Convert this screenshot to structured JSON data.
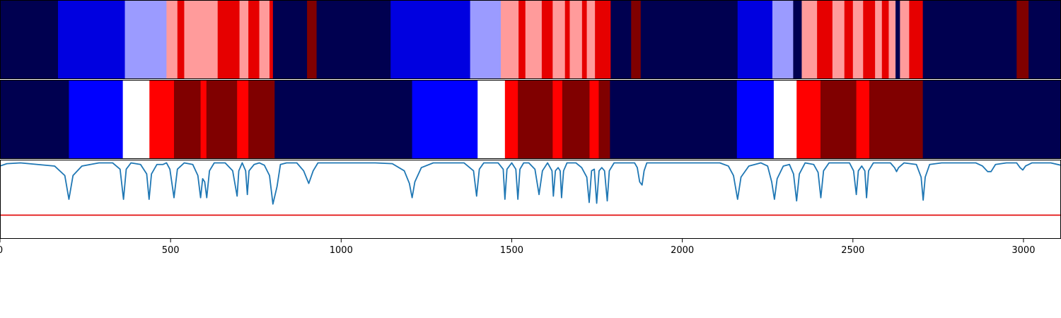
{
  "chart_data": {
    "type": "heatmap",
    "title": "",
    "xlabel": "",
    "ylabel": "",
    "xlim": [
      0,
      3110
    ],
    "x_ticks": [
      0,
      500,
      1000,
      1500,
      2000,
      2500,
      3000
    ],
    "colors": {
      "dark_navy": "#000050",
      "blue": "#0000e0",
      "bright_blue": "#0000ff",
      "light_blue": "#9b9bff",
      "white": "#ffffff",
      "pink": "#ff9b9b",
      "red": "#e60000",
      "bright_red": "#ff0000",
      "dark_red": "#800000",
      "line": "#1f77b4",
      "threshold": "#e00000"
    },
    "panels": [
      {
        "kind": "segments",
        "segments": [
          {
            "start": 0,
            "end": 170,
            "color": "dark_navy"
          },
          {
            "start": 170,
            "end": 366,
            "color": "blue"
          },
          {
            "start": 366,
            "end": 488,
            "color": "light_blue"
          },
          {
            "start": 488,
            "end": 520,
            "color": "pink"
          },
          {
            "start": 520,
            "end": 540,
            "color": "red"
          },
          {
            "start": 540,
            "end": 638,
            "color": "pink"
          },
          {
            "start": 638,
            "end": 702,
            "color": "red"
          },
          {
            "start": 702,
            "end": 728,
            "color": "pink"
          },
          {
            "start": 728,
            "end": 760,
            "color": "red"
          },
          {
            "start": 760,
            "end": 790,
            "color": "pink"
          },
          {
            "start": 790,
            "end": 800,
            "color": "red"
          },
          {
            "start": 800,
            "end": 900,
            "color": "dark_navy"
          },
          {
            "start": 900,
            "end": 928,
            "color": "dark_red"
          },
          {
            "start": 928,
            "end": 1145,
            "color": "dark_navy"
          },
          {
            "start": 1145,
            "end": 1378,
            "color": "blue"
          },
          {
            "start": 1378,
            "end": 1468,
            "color": "light_blue"
          },
          {
            "start": 1468,
            "end": 1520,
            "color": "pink"
          },
          {
            "start": 1520,
            "end": 1540,
            "color": "red"
          },
          {
            "start": 1540,
            "end": 1588,
            "color": "pink"
          },
          {
            "start": 1588,
            "end": 1620,
            "color": "red"
          },
          {
            "start": 1620,
            "end": 1656,
            "color": "pink"
          },
          {
            "start": 1656,
            "end": 1670,
            "color": "red"
          },
          {
            "start": 1670,
            "end": 1706,
            "color": "pink"
          },
          {
            "start": 1706,
            "end": 1720,
            "color": "red"
          },
          {
            "start": 1720,
            "end": 1744,
            "color": "pink"
          },
          {
            "start": 1744,
            "end": 1790,
            "color": "red"
          },
          {
            "start": 1790,
            "end": 1850,
            "color": "dark_navy"
          },
          {
            "start": 1850,
            "end": 1878,
            "color": "dark_red"
          },
          {
            "start": 1878,
            "end": 2162,
            "color": "dark_navy"
          },
          {
            "start": 2162,
            "end": 2264,
            "color": "blue"
          },
          {
            "start": 2264,
            "end": 2325,
            "color": "light_blue"
          },
          {
            "start": 2325,
            "end": 2350,
            "color": "dark_navy"
          },
          {
            "start": 2350,
            "end": 2395,
            "color": "pink"
          },
          {
            "start": 2395,
            "end": 2440,
            "color": "red"
          },
          {
            "start": 2440,
            "end": 2475,
            "color": "pink"
          },
          {
            "start": 2475,
            "end": 2500,
            "color": "red"
          },
          {
            "start": 2500,
            "end": 2530,
            "color": "pink"
          },
          {
            "start": 2530,
            "end": 2565,
            "color": "red"
          },
          {
            "start": 2565,
            "end": 2585,
            "color": "pink"
          },
          {
            "start": 2585,
            "end": 2605,
            "color": "red"
          },
          {
            "start": 2605,
            "end": 2625,
            "color": "pink"
          },
          {
            "start": 2625,
            "end": 2638,
            "color": "dark_navy"
          },
          {
            "start": 2638,
            "end": 2665,
            "color": "pink"
          },
          {
            "start": 2665,
            "end": 2705,
            "color": "red"
          },
          {
            "start": 2705,
            "end": 2980,
            "color": "dark_navy"
          },
          {
            "start": 2980,
            "end": 3015,
            "color": "dark_red"
          },
          {
            "start": 3015,
            "end": 3110,
            "color": "dark_navy"
          }
        ]
      },
      {
        "kind": "segments",
        "segments": [
          {
            "start": 0,
            "end": 202,
            "color": "dark_navy"
          },
          {
            "start": 202,
            "end": 360,
            "color": "bright_blue"
          },
          {
            "start": 360,
            "end": 438,
            "color": "white"
          },
          {
            "start": 438,
            "end": 510,
            "color": "bright_red"
          },
          {
            "start": 510,
            "end": 588,
            "color": "dark_red"
          },
          {
            "start": 588,
            "end": 605,
            "color": "bright_red"
          },
          {
            "start": 605,
            "end": 695,
            "color": "dark_red"
          },
          {
            "start": 695,
            "end": 728,
            "color": "bright_red"
          },
          {
            "start": 728,
            "end": 805,
            "color": "dark_red"
          },
          {
            "start": 805,
            "end": 1208,
            "color": "dark_navy"
          },
          {
            "start": 1208,
            "end": 1400,
            "color": "bright_blue"
          },
          {
            "start": 1400,
            "end": 1480,
            "color": "white"
          },
          {
            "start": 1480,
            "end": 1518,
            "color": "bright_red"
          },
          {
            "start": 1518,
            "end": 1620,
            "color": "dark_red"
          },
          {
            "start": 1620,
            "end": 1648,
            "color": "bright_red"
          },
          {
            "start": 1648,
            "end": 1728,
            "color": "dark_red"
          },
          {
            "start": 1728,
            "end": 1755,
            "color": "bright_red"
          },
          {
            "start": 1755,
            "end": 1788,
            "color": "dark_red"
          },
          {
            "start": 1788,
            "end": 2160,
            "color": "dark_navy"
          },
          {
            "start": 2160,
            "end": 2268,
            "color": "bright_blue"
          },
          {
            "start": 2268,
            "end": 2335,
            "color": "white"
          },
          {
            "start": 2335,
            "end": 2405,
            "color": "bright_red"
          },
          {
            "start": 2405,
            "end": 2510,
            "color": "dark_red"
          },
          {
            "start": 2510,
            "end": 2548,
            "color": "bright_red"
          },
          {
            "start": 2548,
            "end": 2705,
            "color": "dark_red"
          },
          {
            "start": 2705,
            "end": 3110,
            "color": "dark_navy"
          }
        ]
      },
      {
        "kind": "line",
        "ylim": [
          0,
          1
        ],
        "threshold": 0.3,
        "baseline": 0.96,
        "line_points": [
          [
            0,
            0.92
          ],
          [
            20,
            0.95
          ],
          [
            60,
            0.96
          ],
          [
            160,
            0.92
          ],
          [
            190,
            0.8
          ],
          [
            202,
            0.5
          ],
          [
            214,
            0.8
          ],
          [
            240,
            0.92
          ],
          [
            290,
            0.96
          ],
          [
            330,
            0.96
          ],
          [
            352,
            0.88
          ],
          [
            362,
            0.5
          ],
          [
            370,
            0.88
          ],
          [
            384,
            0.96
          ],
          [
            412,
            0.94
          ],
          [
            430,
            0.82
          ],
          [
            437,
            0.5
          ],
          [
            444,
            0.82
          ],
          [
            460,
            0.94
          ],
          [
            478,
            0.94
          ],
          [
            488,
            0.96
          ],
          [
            498,
            0.88
          ],
          [
            510,
            0.52
          ],
          [
            520,
            0.88
          ],
          [
            540,
            0.96
          ],
          [
            565,
            0.94
          ],
          [
            580,
            0.8
          ],
          [
            588,
            0.52
          ],
          [
            594,
            0.76
          ],
          [
            600,
            0.72
          ],
          [
            606,
            0.52
          ],
          [
            614,
            0.86
          ],
          [
            628,
            0.96
          ],
          [
            660,
            0.96
          ],
          [
            682,
            0.86
          ],
          [
            695,
            0.54
          ],
          [
            700,
            0.86
          ],
          [
            710,
            0.96
          ],
          [
            720,
            0.86
          ],
          [
            725,
            0.56
          ],
          [
            730,
            0.86
          ],
          [
            745,
            0.94
          ],
          [
            760,
            0.96
          ],
          [
            775,
            0.93
          ],
          [
            790,
            0.8
          ],
          [
            800,
            0.44
          ],
          [
            812,
            0.66
          ],
          [
            822,
            0.94
          ],
          [
            840,
            0.96
          ],
          [
            870,
            0.96
          ],
          [
            890,
            0.86
          ],
          [
            905,
            0.7
          ],
          [
            918,
            0.86
          ],
          [
            932,
            0.96
          ],
          [
            1000,
            0.96
          ],
          [
            1100,
            0.96
          ],
          [
            1150,
            0.95
          ],
          [
            1185,
            0.86
          ],
          [
            1200,
            0.7
          ],
          [
            1208,
            0.52
          ],
          [
            1216,
            0.72
          ],
          [
            1235,
            0.9
          ],
          [
            1270,
            0.96
          ],
          [
            1360,
            0.96
          ],
          [
            1388,
            0.86
          ],
          [
            1397,
            0.54
          ],
          [
            1405,
            0.88
          ],
          [
            1418,
            0.96
          ],
          [
            1460,
            0.96
          ],
          [
            1475,
            0.88
          ],
          [
            1480,
            0.5
          ],
          [
            1486,
            0.88
          ],
          [
            1500,
            0.96
          ],
          [
            1512,
            0.88
          ],
          [
            1518,
            0.5
          ],
          [
            1524,
            0.88
          ],
          [
            1535,
            0.96
          ],
          [
            1550,
            0.96
          ],
          [
            1568,
            0.88
          ],
          [
            1580,
            0.56
          ],
          [
            1590,
            0.86
          ],
          [
            1605,
            0.96
          ],
          [
            1618,
            0.86
          ],
          [
            1622,
            0.54
          ],
          [
            1628,
            0.86
          ],
          [
            1636,
            0.9
          ],
          [
            1642,
            0.86
          ],
          [
            1646,
            0.52
          ],
          [
            1652,
            0.86
          ],
          [
            1662,
            0.96
          ],
          [
            1688,
            0.96
          ],
          [
            1705,
            0.9
          ],
          [
            1720,
            0.78
          ],
          [
            1727,
            0.46
          ],
          [
            1734,
            0.86
          ],
          [
            1742,
            0.88
          ],
          [
            1749,
            0.45
          ],
          [
            1756,
            0.86
          ],
          [
            1764,
            0.9
          ],
          [
            1772,
            0.86
          ],
          [
            1780,
            0.48
          ],
          [
            1786,
            0.86
          ],
          [
            1800,
            0.96
          ],
          [
            1860,
            0.96
          ],
          [
            1868,
            0.9
          ],
          [
            1875,
            0.72
          ],
          [
            1882,
            0.68
          ],
          [
            1888,
            0.86
          ],
          [
            1896,
            0.96
          ],
          [
            2000,
            0.96
          ],
          [
            2110,
            0.96
          ],
          [
            2135,
            0.92
          ],
          [
            2150,
            0.8
          ],
          [
            2162,
            0.5
          ],
          [
            2172,
            0.78
          ],
          [
            2195,
            0.92
          ],
          [
            2230,
            0.96
          ],
          [
            2250,
            0.92
          ],
          [
            2262,
            0.72
          ],
          [
            2270,
            0.5
          ],
          [
            2278,
            0.76
          ],
          [
            2296,
            0.92
          ],
          [
            2314,
            0.94
          ],
          [
            2326,
            0.82
          ],
          [
            2335,
            0.48
          ],
          [
            2343,
            0.82
          ],
          [
            2360,
            0.96
          ],
          [
            2385,
            0.94
          ],
          [
            2398,
            0.84
          ],
          [
            2406,
            0.52
          ],
          [
            2414,
            0.86
          ],
          [
            2430,
            0.96
          ],
          [
            2490,
            0.96
          ],
          [
            2502,
            0.86
          ],
          [
            2510,
            0.56
          ],
          [
            2516,
            0.86
          ],
          [
            2526,
            0.92
          ],
          [
            2535,
            0.86
          ],
          [
            2540,
            0.52
          ],
          [
            2546,
            0.86
          ],
          [
            2560,
            0.96
          ],
          [
            2610,
            0.96
          ],
          [
            2622,
            0.9
          ],
          [
            2628,
            0.85
          ],
          [
            2634,
            0.9
          ],
          [
            2650,
            0.96
          ],
          [
            2686,
            0.94
          ],
          [
            2700,
            0.78
          ],
          [
            2706,
            0.49
          ],
          [
            2712,
            0.78
          ],
          [
            2725,
            0.94
          ],
          [
            2760,
            0.96
          ],
          [
            2860,
            0.96
          ],
          [
            2880,
            0.92
          ],
          [
            2895,
            0.85
          ],
          [
            2905,
            0.85
          ],
          [
            2918,
            0.94
          ],
          [
            2950,
            0.96
          ],
          [
            2980,
            0.96
          ],
          [
            2990,
            0.9
          ],
          [
            2998,
            0.87
          ],
          [
            3006,
            0.92
          ],
          [
            3025,
            0.96
          ],
          [
            3080,
            0.96
          ],
          [
            3110,
            0.93
          ]
        ]
      }
    ]
  }
}
